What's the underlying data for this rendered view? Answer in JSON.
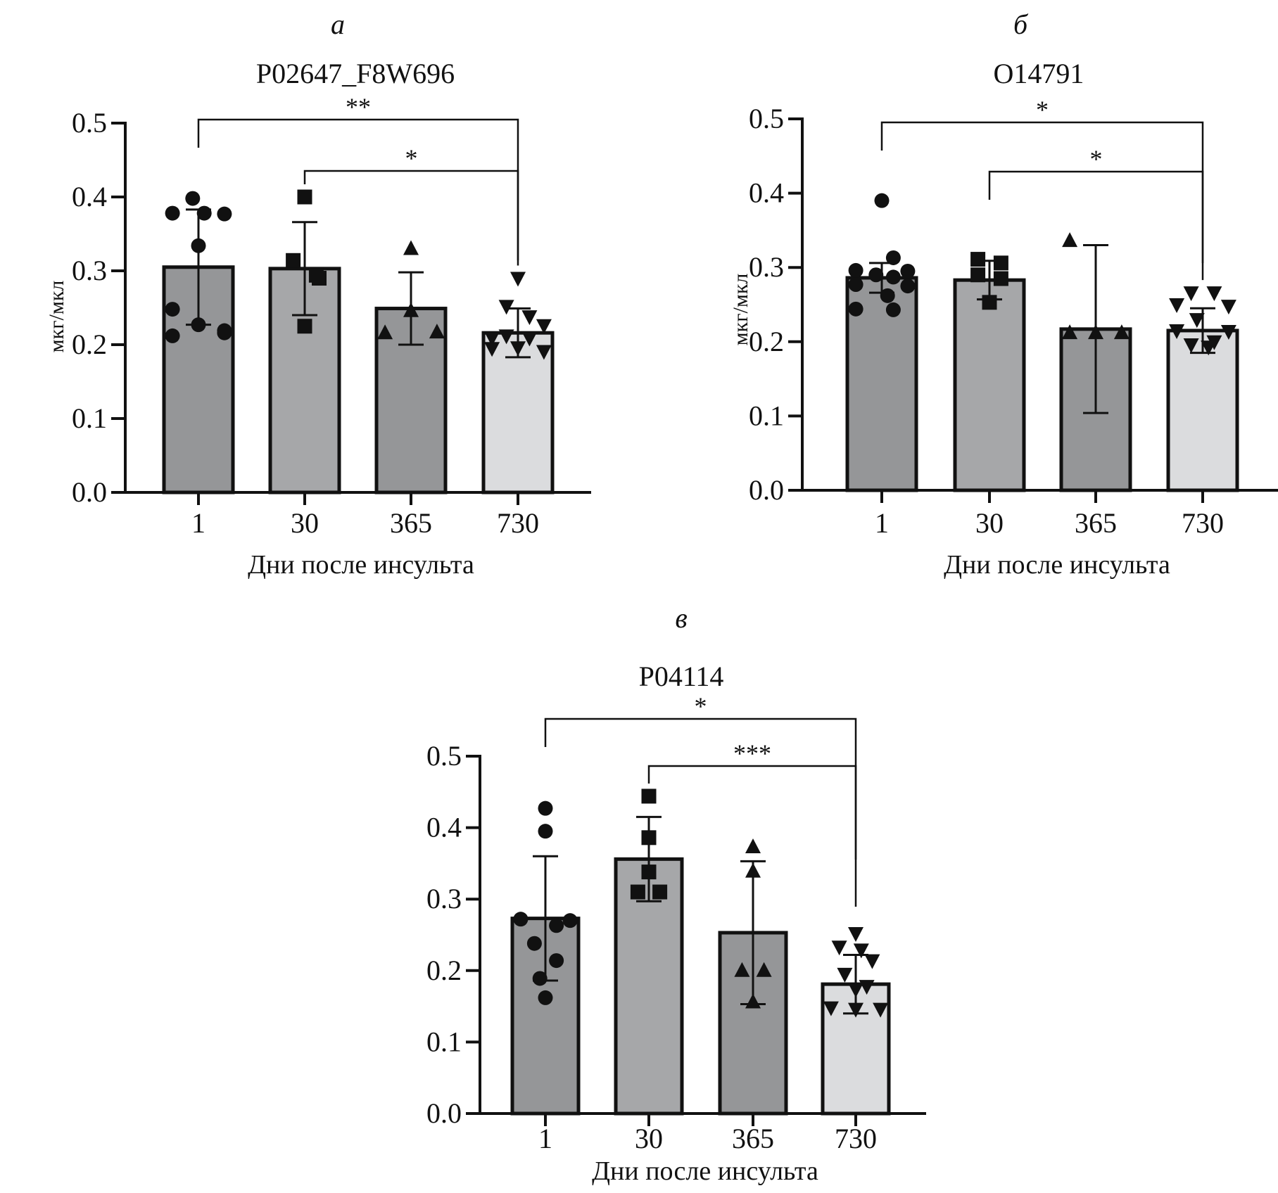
{
  "chart_data": [
    {
      "type": "bar",
      "panel_label": "а",
      "title": "P02647_F8W696",
      "xlabel": "Дни после инсульта",
      "ylabel": "мкг/мкл",
      "ylim": [
        0,
        0.5
      ],
      "yticks": [
        "0.0",
        "0.1",
        "0.2",
        "0.3",
        "0.4",
        "0.5"
      ],
      "categories": [
        "1",
        "30",
        "365",
        "730"
      ],
      "values": [
        0.305,
        0.303,
        0.249,
        0.216
      ],
      "sd": [
        0.078,
        0.063,
        0.049,
        0.033
      ],
      "bar_colors": [
        "#959698",
        "#a6a7a9",
        "#959698",
        "#dbdcde"
      ],
      "markers": [
        "circle",
        "square",
        "triangle-up",
        "triangle-down"
      ],
      "points": [
        [
          0.378,
          0.398,
          0.378,
          0.377,
          0.334,
          0.248,
          0.227,
          0.216,
          0.212,
          0.219
        ],
        [
          0.4,
          0.314,
          0.294,
          0.29,
          0.225
        ],
        [
          0.33,
          0.246,
          0.216,
          0.217
        ],
        [
          0.29,
          0.252,
          0.238,
          0.226,
          0.209,
          0.212,
          0.209,
          0.191,
          0.195,
          0.196
        ]
      ],
      "jitter": [
        [
          -0.45,
          -0.1,
          0.1,
          0.45,
          0,
          -0.45,
          0,
          0.45,
          -0.45,
          0.45
        ],
        [
          0,
          -0.2,
          0.2,
          0.25,
          0
        ],
        [
          0,
          0,
          -0.45,
          0.45
        ],
        [
          0,
          -0.2,
          0.2,
          0.45,
          -0.45,
          -0.2,
          0.2,
          0.45,
          -0.45,
          0
        ]
      ],
      "significance": [
        {
          "from": "1",
          "to": "730",
          "label": "**"
        },
        {
          "from": "30",
          "to": "730",
          "label": "*"
        }
      ]
    },
    {
      "type": "bar",
      "panel_label": "б",
      "title": "O14791",
      "xlabel": "Дни после инсульта",
      "ylabel": "мкг/мкл",
      "ylim": [
        0,
        0.5
      ],
      "yticks": [
        "0.0",
        "0.1",
        "0.2",
        "0.3",
        "0.4",
        "0.5"
      ],
      "categories": [
        "1",
        "30",
        "365",
        "730"
      ],
      "values": [
        0.286,
        0.283,
        0.217,
        0.215
      ],
      "sd": [
        0.02,
        0.026,
        0.113,
        0.03
      ],
      "bar_colors": [
        "#959698",
        "#a6a7a9",
        "#959698",
        "#dbdcde"
      ],
      "markers": [
        "circle",
        "square",
        "triangle-up",
        "triangle-down"
      ],
      "points": [
        [
          0.39,
          0.313,
          0.296,
          0.295,
          0.29,
          0.287,
          0.277,
          0.275,
          0.262,
          0.244,
          0.243
        ],
        [
          0.311,
          0.306,
          0.29,
          0.285,
          0.253
        ],
        [
          0.336,
          0.212,
          0.212,
          0.212
        ],
        [
          0.266,
          0.266,
          0.25,
          0.248,
          0.23,
          0.215,
          0.214,
          0.2,
          0.196,
          0.193
        ]
      ],
      "jitter": [
        [
          0,
          0.2,
          -0.45,
          0.45,
          -0.1,
          0.2,
          -0.45,
          0.45,
          0.1,
          -0.45,
          0.2
        ],
        [
          -0.2,
          0.2,
          -0.2,
          0.2,
          0
        ],
        [
          -0.45,
          -0.45,
          0,
          0.45
        ],
        [
          -0.2,
          0.2,
          -0.45,
          0.45,
          -0.1,
          -0.45,
          0.45,
          0.2,
          -0.2,
          0.1
        ]
      ],
      "significance": [
        {
          "from": "1",
          "to": "730",
          "label": "*"
        },
        {
          "from": "30",
          "to": "730",
          "label": "*"
        }
      ]
    },
    {
      "type": "bar",
      "panel_label": "в",
      "title": "P04114",
      "xlabel": "Дни после инсульта",
      "ylabel": "",
      "ylim": [
        0,
        0.5
      ],
      "yticks": [
        "0.0",
        "0.1",
        "0.2",
        "0.3",
        "0.4",
        "0.5"
      ],
      "categories": [
        "1",
        "30",
        "365",
        "730"
      ],
      "values": [
        0.273,
        0.356,
        0.253,
        0.181
      ],
      "sd": [
        0.087,
        0.059,
        0.1,
        0.041
      ],
      "bar_colors": [
        "#959698",
        "#a6a7a9",
        "#959698",
        "#dbdcde"
      ],
      "markers": [
        "circle",
        "square",
        "triangle-up",
        "triangle-down"
      ],
      "points": [
        [
          0.427,
          0.395,
          0.272,
          0.27,
          0.263,
          0.238,
          0.214,
          0.189,
          0.162
        ],
        [
          0.444,
          0.386,
          0.338,
          0.31,
          0.31
        ],
        [
          0.373,
          0.339,
          0.2,
          0.2,
          0.156
        ],
        [
          0.252,
          0.233,
          0.229,
          0.214,
          0.195,
          0.178,
          0.174,
          0.148,
          0.146,
          0.146
        ]
      ],
      "jitter": [
        [
          0,
          0,
          -0.45,
          0.45,
          0.2,
          -0.2,
          0.2,
          -0.1,
          0
        ],
        [
          0,
          0,
          0,
          -0.2,
          0.2
        ],
        [
          0,
          0,
          -0.2,
          0.2,
          0
        ],
        [
          0,
          -0.3,
          0.1,
          0.3,
          -0.2,
          0.2,
          0,
          -0.45,
          0.45,
          0
        ]
      ],
      "significance": [
        {
          "from": "1",
          "to": "730",
          "label": "*"
        },
        {
          "from": "30",
          "to": "730",
          "label": "***"
        }
      ]
    }
  ]
}
